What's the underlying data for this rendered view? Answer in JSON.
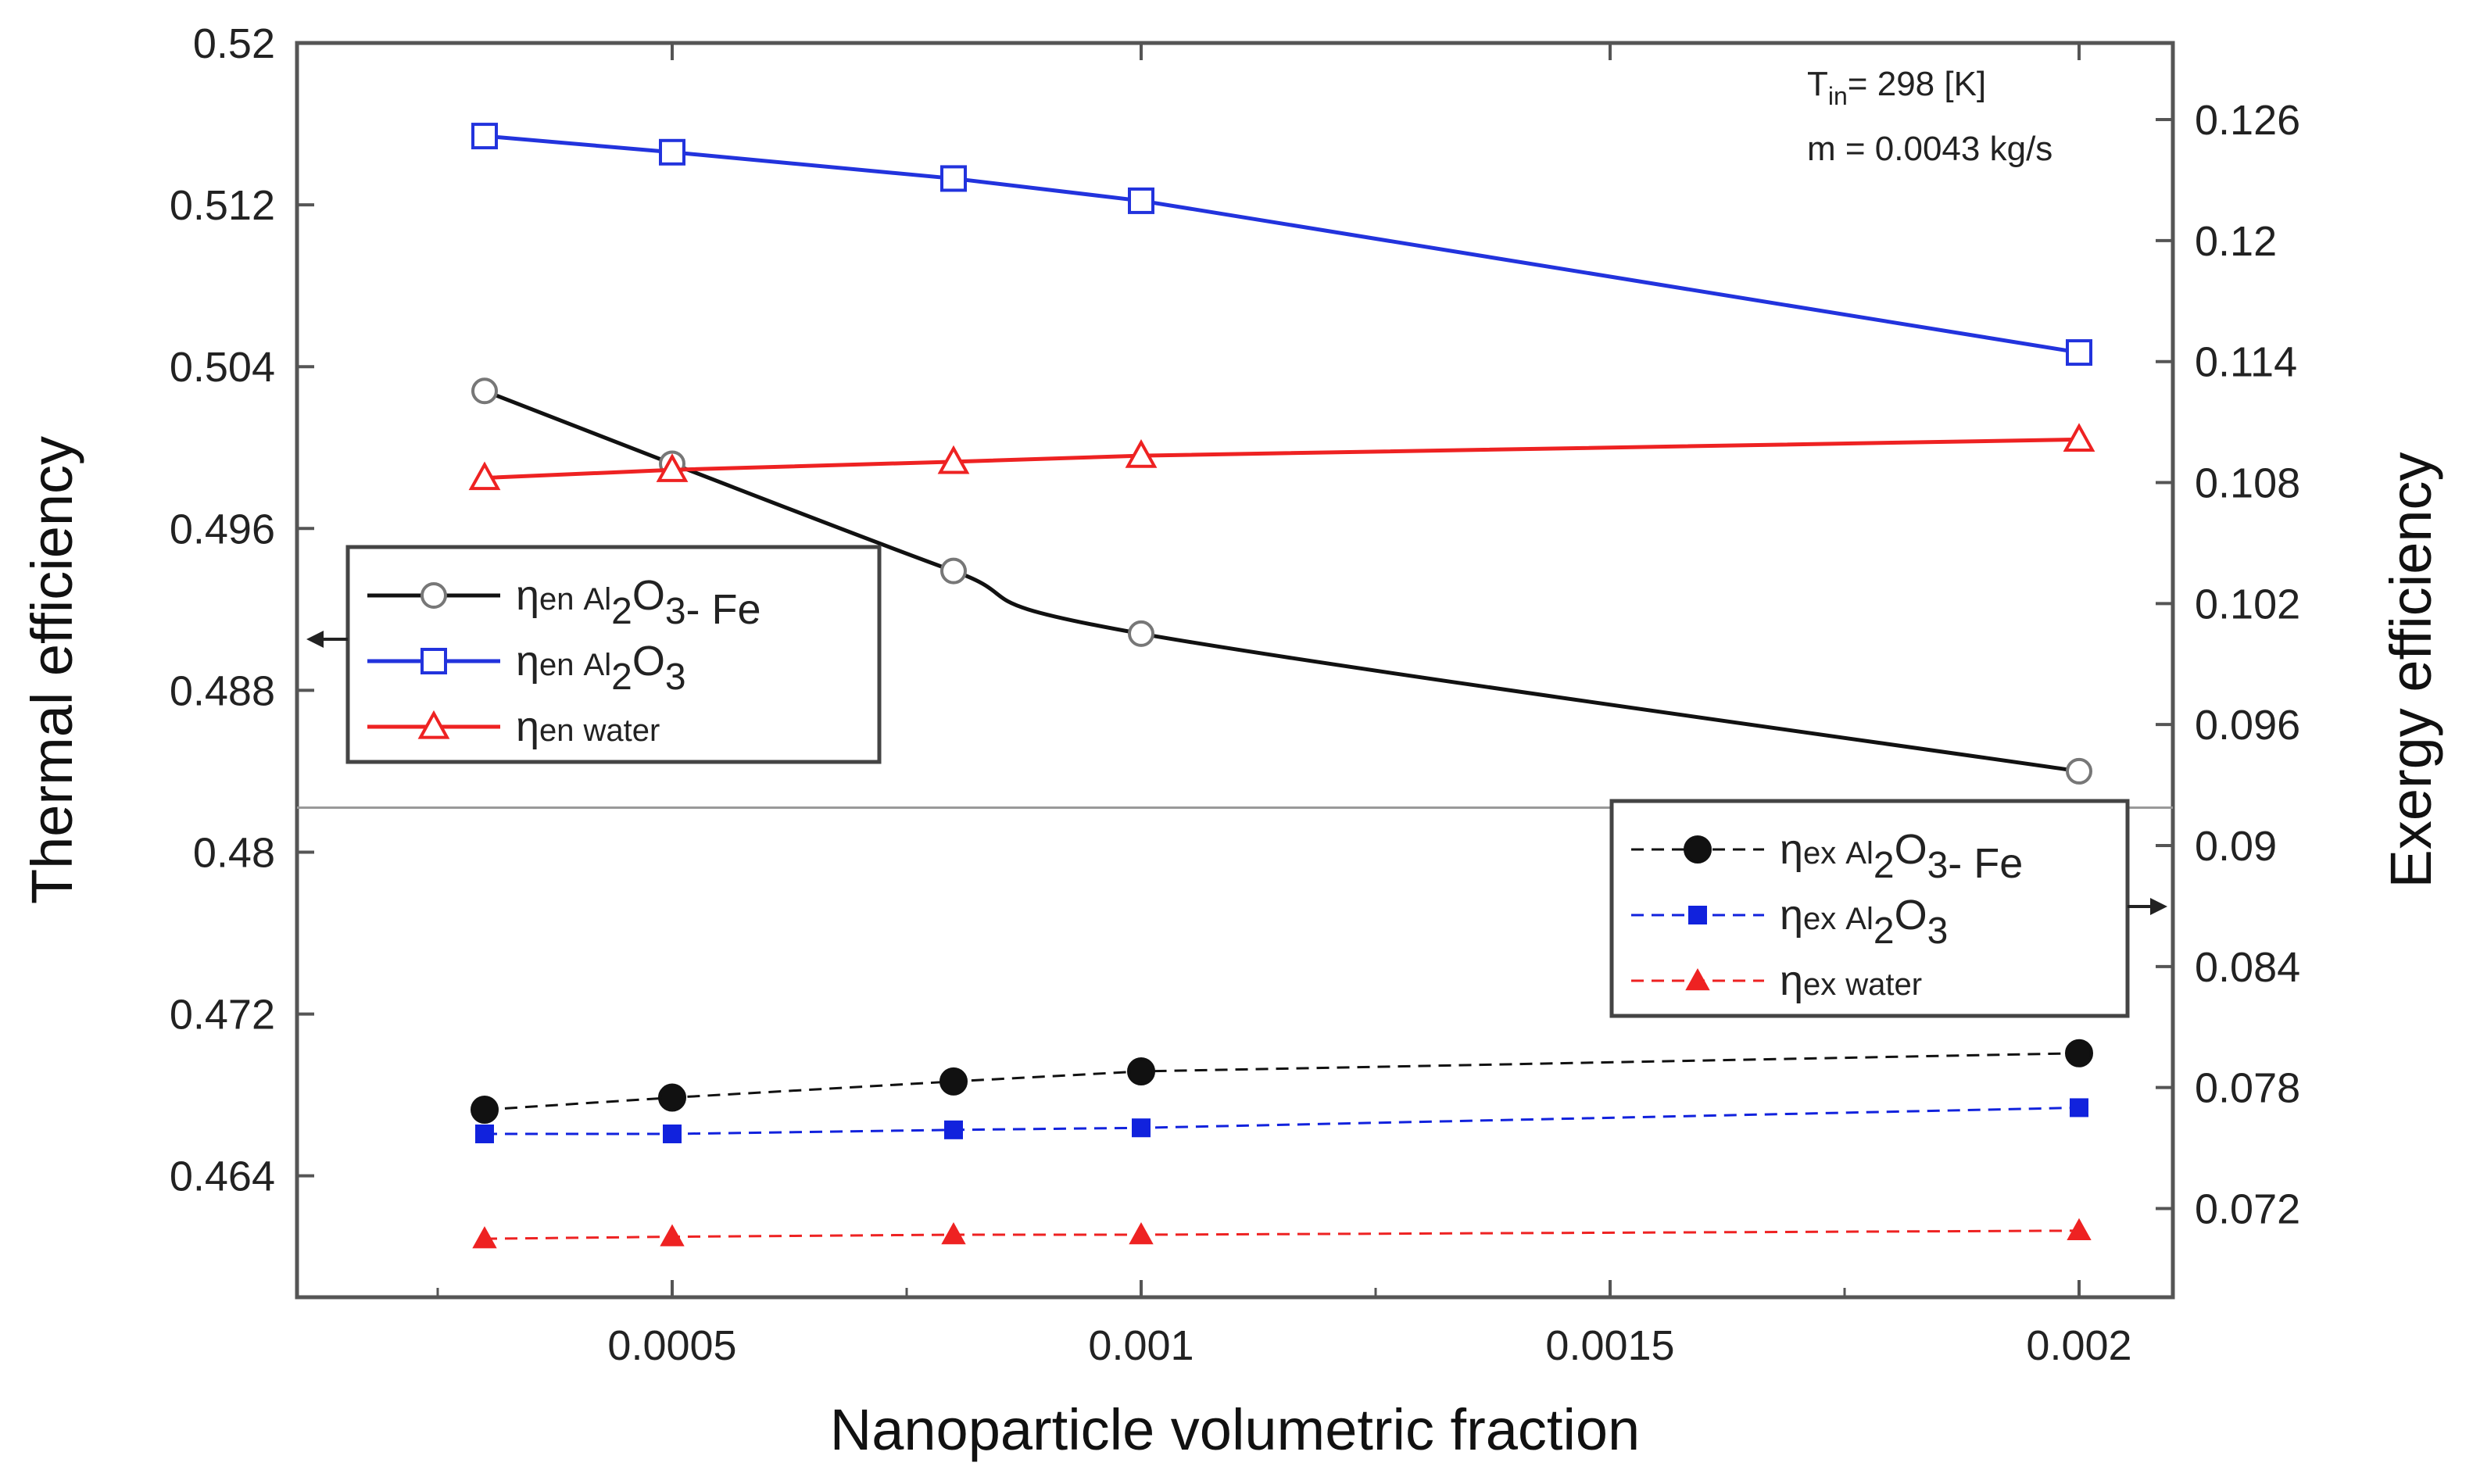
{
  "chart_data": {
    "type": "line",
    "title": "",
    "xlabel": "Nanoparticle volumetric fraction",
    "ylabel_left": "Thermal efficiency",
    "ylabel_right": "Exergy efficiency",
    "xlim": [
      0.0001,
      0.0021
    ],
    "ylim_left": [
      0.458,
      0.52
    ],
    "ylim_right": [
      0.0676,
      0.1298
    ],
    "x_ticks": [
      0.0005,
      0.001,
      0.0015,
      0.002
    ],
    "x_tick_labels": [
      "0.0005",
      "0.001",
      "0.0015",
      "0.002"
    ],
    "y_left_ticks": [
      0.464,
      0.472,
      0.48,
      0.488,
      0.496,
      0.504,
      0.512,
      0.52
    ],
    "y_left_tick_labels": [
      "0.464",
      "0.472",
      "0.48",
      "0.488",
      "0.496",
      "0.504",
      "0.512",
      "0.52"
    ],
    "y_right_ticks": [
      0.072,
      0.078,
      0.084,
      0.09,
      0.096,
      0.102,
      0.108,
      0.114,
      0.12,
      0.126
    ],
    "y_right_tick_labels": [
      "0.072",
      "0.078",
      "0.084",
      "0.09",
      "0.096",
      "0.102",
      "0.108",
      "0.114",
      "0.12",
      "0.126"
    ],
    "x": [
      0.0003,
      0.0005,
      0.0008,
      0.001,
      0.002
    ],
    "series": [
      {
        "id": "en_fe",
        "name": "ηen Al2O3- Fe",
        "axis": "left",
        "color": "#111111",
        "marker": "open-circle",
        "dash": false,
        "smooth": true,
        "values": [
          0.5028,
          0.4992,
          0.4939,
          0.4908,
          0.484
        ]
      },
      {
        "id": "en_al",
        "name": "ηen Al2O3",
        "axis": "left",
        "color": "#2233dd",
        "marker": "open-square",
        "dash": false,
        "smooth": false,
        "values": [
          0.5154,
          0.5146,
          0.5133,
          0.5122,
          0.5047
        ]
      },
      {
        "id": "en_w",
        "name": "ηen water",
        "axis": "left",
        "color": "#ee2222",
        "marker": "open-triangle",
        "dash": false,
        "smooth": false,
        "values": [
          0.4985,
          0.4989,
          0.4993,
          0.4996,
          0.5004
        ]
      },
      {
        "id": "ex_fe",
        "name": "ηex Al2O3- Fe",
        "axis": "right",
        "color": "#111111",
        "marker": "filled-circle",
        "dash": true,
        "smooth": false,
        "values": [
          0.0769,
          0.0775,
          0.0783,
          0.0788,
          0.0797
        ]
      },
      {
        "id": "ex_al",
        "name": "ηex Al2O3",
        "axis": "right",
        "color": "#1122dd",
        "marker": "filled-square",
        "dash": true,
        "smooth": false,
        "values": [
          0.0757,
          0.0757,
          0.0759,
          0.076,
          0.077
        ]
      },
      {
        "id": "ex_w",
        "name": "ηex water",
        "axis": "right",
        "color": "#ee2222",
        "marker": "filled-triangle",
        "dash": true,
        "smooth": false,
        "values": [
          0.0705,
          0.0706,
          0.0707,
          0.0707,
          0.0709
        ]
      }
    ],
    "legend_left": {
      "placement": "center-left",
      "entries": [
        {
          "series": "en_fe",
          "eta": "η",
          "sub": "en",
          "label_a": "Al",
          "label_sub1": "2",
          "label_b": "O",
          "label_sub2": "3",
          "label_c": "- Fe"
        },
        {
          "series": "en_al",
          "eta": "η",
          "sub": "en",
          "label_a": "Al",
          "label_sub1": "2",
          "label_b": "O",
          "label_sub2": "3",
          "label_c": ""
        },
        {
          "series": "en_w",
          "eta": "η",
          "sub": "en",
          "label_a": "water",
          "label_sub1": "",
          "label_b": "",
          "label_sub2": "",
          "label_c": ""
        }
      ]
    },
    "legend_right": {
      "placement": "center-right",
      "entries": [
        {
          "series": "ex_fe",
          "eta": "η",
          "sub": "ex",
          "label_a": "Al",
          "label_sub1": "2",
          "label_b": "O",
          "label_sub2": "3",
          "label_c": "- Fe"
        },
        {
          "series": "ex_al",
          "eta": "η",
          "sub": "ex",
          "label_a": "Al",
          "label_sub1": "2",
          "label_b": "O",
          "label_sub2": "3",
          "label_c": ""
        },
        {
          "series": "ex_w",
          "eta": "η",
          "sub": "ex",
          "label_a": "water",
          "label_sub1": "",
          "label_b": "",
          "label_sub2": "",
          "label_c": ""
        }
      ]
    },
    "annotations": {
      "tin_label": "T",
      "tin_sub": "in",
      "tin_value": "= 298 [K]",
      "mass_flow": "m = 0.0043 kg/s"
    }
  }
}
